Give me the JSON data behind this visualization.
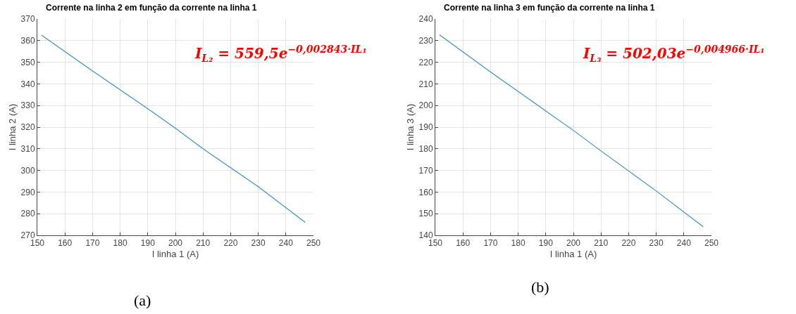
{
  "chart_data": [
    {
      "type": "line",
      "title": "Corrente na linha 2 em função da corrente na linha 1",
      "xlabel": "I linha 1 (A)",
      "ylabel": "I linha 2 (A)",
      "series": [
        {
          "color": "#3d8fc0",
          "x": [
            151.5,
            170,
            190,
            200,
            210,
            230,
            247
          ],
          "values": [
            362.5,
            346,
            328.5,
            319.5,
            310,
            292.5,
            276
          ]
        }
      ],
      "xlim": [
        150,
        250
      ],
      "xticks": [
        150,
        160,
        170,
        180,
        190,
        200,
        210,
        220,
        230,
        240,
        250
      ],
      "ylim": [
        270,
        370
      ],
      "yticks": [
        270,
        280,
        290,
        300,
        310,
        320,
        330,
        340,
        350,
        360,
        370
      ],
      "grid": true,
      "annotations": [
        "I$_{L₂}$ = 559,5e$^{−0,002843·IL₁}$",
        "(a)"
      ]
    },
    {
      "type": "line",
      "title": "Corrente na linha 3 em função da corrente na linha 1",
      "xlabel": "I linha 1 (A)",
      "ylabel": "I linha 3 (A)",
      "series": [
        {
          "color": "#3d8fc0",
          "x": [
            151.5,
            170,
            190,
            200,
            210,
            230,
            247
          ],
          "values": [
            232.7,
            215.5,
            197.5,
            188.5,
            179,
            160.5,
            144
          ]
        }
      ],
      "xlim": [
        150,
        250
      ],
      "xticks": [
        150,
        160,
        170,
        180,
        190,
        200,
        210,
        220,
        230,
        240,
        250
      ],
      "ylim": [
        140,
        240
      ],
      "yticks": [
        140,
        150,
        160,
        170,
        180,
        190,
        200,
        210,
        220,
        230,
        240
      ],
      "grid": true,
      "annotations": [
        "I$_{L₃}$ = 502,03e$^{−0,004966·IL₁}$",
        "(b)"
      ]
    }
  ]
}
